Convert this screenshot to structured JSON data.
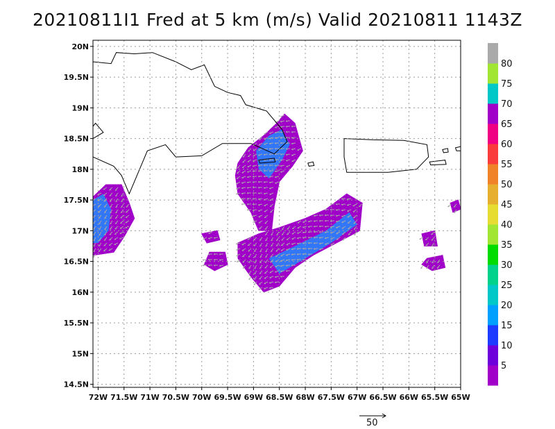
{
  "title": "20210811I1 Fred at 5 km (m/s) Valid 20210811 1143Z",
  "map": {
    "lon_range": [
      -72.1,
      -65
    ],
    "lat_range": [
      14.45,
      20.1
    ],
    "lon_ticks": [
      {
        "value": -72,
        "label": "72W"
      },
      {
        "value": -71.5,
        "label": "71.5W"
      },
      {
        "value": -71,
        "label": "71W"
      },
      {
        "value": -70.5,
        "label": "70.5W"
      },
      {
        "value": -70,
        "label": "70W"
      },
      {
        "value": -69.5,
        "label": "69.5W"
      },
      {
        "value": -69,
        "label": "69W"
      },
      {
        "value": -68.5,
        "label": "68.5W"
      },
      {
        "value": -68,
        "label": "68W"
      },
      {
        "value": -67.5,
        "label": "67.5W"
      },
      {
        "value": -67,
        "label": "67W"
      },
      {
        "value": -66.5,
        "label": "66.5W"
      },
      {
        "value": -66,
        "label": "66W"
      },
      {
        "value": -65.5,
        "label": "65.5W"
      },
      {
        "value": -65,
        "label": "65W"
      }
    ],
    "lat_ticks": [
      {
        "value": 14.5,
        "label": "14.5N"
      },
      {
        "value": 15,
        "label": "15N"
      },
      {
        "value": 15.5,
        "label": "15.5N"
      },
      {
        "value": 16,
        "label": "16N"
      },
      {
        "value": 16.5,
        "label": "16.5N"
      },
      {
        "value": 17,
        "label": "17N"
      },
      {
        "value": 17.5,
        "label": "17.5N"
      },
      {
        "value": 18,
        "label": "18N"
      },
      {
        "value": 18.5,
        "label": "18.5N"
      },
      {
        "value": 19,
        "label": "19N"
      },
      {
        "value": 19.5,
        "label": "19.5N"
      },
      {
        "value": 20,
        "label": "20N"
      }
    ],
    "grid": true,
    "grid_style": "dotted"
  },
  "colorbar": {
    "labels": [
      "5",
      "10",
      "15",
      "20",
      "25",
      "30",
      "35",
      "40",
      "45",
      "50",
      "55",
      "60",
      "65",
      "70",
      "75",
      "80"
    ],
    "colors": [
      "#a000c8",
      "#6e00dc",
      "#1e3cff",
      "#00a0ff",
      "#00c8c8",
      "#00d28c",
      "#00dc00",
      "#a0e632",
      "#e6dc32",
      "#e6af2d",
      "#f08228",
      "#fa3c3c",
      "#f00082",
      "#a000c8",
      "#00c8c8",
      "#a0e632",
      "#aaaaaa"
    ]
  },
  "reference_vector": {
    "label": "50"
  },
  "colors": {
    "coast": "#000000",
    "vector": "#a8a8a8",
    "grid": "#9a9a9a"
  },
  "wind_regions": [
    {
      "name": "lower-left-band",
      "shape": [
        [
          -72.1,
          17.55
        ],
        [
          -71.85,
          17.75
        ],
        [
          -71.55,
          17.75
        ],
        [
          -71.4,
          17.45
        ],
        [
          -71.3,
          17.2
        ],
        [
          -71.5,
          16.9
        ],
        [
          -71.7,
          16.65
        ],
        [
          -72.1,
          16.6
        ]
      ],
      "core": [
        [
          -72.1,
          17.5
        ],
        [
          -71.9,
          17.6
        ],
        [
          -71.75,
          17.35
        ],
        [
          -71.8,
          17.0
        ],
        [
          -72.0,
          16.8
        ],
        [
          -72.1,
          16.8
        ]
      ]
    },
    {
      "name": "northern-cluster",
      "shape": [
        [
          -69.3,
          18.1
        ],
        [
          -69.1,
          18.35
        ],
        [
          -68.8,
          18.55
        ],
        [
          -68.55,
          18.75
        ],
        [
          -68.4,
          18.9
        ],
        [
          -68.2,
          18.75
        ],
        [
          -68.05,
          18.3
        ],
        [
          -68.25,
          18.05
        ],
        [
          -68.5,
          17.8
        ],
        [
          -68.6,
          17.4
        ],
        [
          -68.65,
          17.0
        ],
        [
          -68.9,
          17.0
        ],
        [
          -69.05,
          17.3
        ],
        [
          -69.3,
          17.6
        ],
        [
          -69.35,
          17.9
        ]
      ],
      "core": [
        [
          -68.95,
          18.3
        ],
        [
          -68.7,
          18.55
        ],
        [
          -68.45,
          18.65
        ],
        [
          -68.3,
          18.4
        ],
        [
          -68.45,
          18.15
        ],
        [
          -68.7,
          17.85
        ],
        [
          -68.9,
          18.0
        ]
      ]
    },
    {
      "name": "central-band",
      "shape": [
        [
          -69.3,
          16.8
        ],
        [
          -68.9,
          16.95
        ],
        [
          -68.5,
          17.05
        ],
        [
          -68.0,
          17.2
        ],
        [
          -67.6,
          17.35
        ],
        [
          -67.2,
          17.6
        ],
        [
          -66.9,
          17.45
        ],
        [
          -66.95,
          17.0
        ],
        [
          -67.4,
          16.8
        ],
        [
          -67.85,
          16.6
        ],
        [
          -68.2,
          16.4
        ],
        [
          -68.5,
          16.1
        ],
        [
          -68.8,
          16.0
        ],
        [
          -69.05,
          16.25
        ],
        [
          -69.3,
          16.55
        ]
      ],
      "core": [
        [
          -68.7,
          16.55
        ],
        [
          -68.2,
          16.75
        ],
        [
          -67.6,
          17.0
        ],
        [
          -67.15,
          17.3
        ],
        [
          -67.0,
          17.1
        ],
        [
          -67.5,
          16.8
        ],
        [
          -68.0,
          16.55
        ],
        [
          -68.5,
          16.3
        ]
      ]
    },
    {
      "name": "left-small-patch",
      "shape": [
        [
          -69.85,
          16.65
        ],
        [
          -69.55,
          16.65
        ],
        [
          -69.5,
          16.45
        ],
        [
          -69.75,
          16.35
        ],
        [
          -69.95,
          16.45
        ]
      ]
    },
    {
      "name": "left-mini-patch",
      "shape": [
        [
          -70.0,
          16.95
        ],
        [
          -69.7,
          17.0
        ],
        [
          -69.65,
          16.85
        ],
        [
          -69.9,
          16.8
        ]
      ]
    },
    {
      "name": "right-small-patch",
      "shape": [
        [
          -65.65,
          16.55
        ],
        [
          -65.35,
          16.6
        ],
        [
          -65.3,
          16.4
        ],
        [
          -65.55,
          16.35
        ],
        [
          -65.75,
          16.45
        ]
      ]
    },
    {
      "name": "right-mini-patch",
      "shape": [
        [
          -65.75,
          16.95
        ],
        [
          -65.5,
          17.0
        ],
        [
          -65.45,
          16.75
        ],
        [
          -65.7,
          16.75
        ]
      ]
    },
    {
      "name": "far-right-fragment",
      "shape": [
        [
          -65.2,
          17.45
        ],
        [
          -65.05,
          17.5
        ],
        [
          -65.0,
          17.35
        ],
        [
          -65.15,
          17.3
        ]
      ]
    }
  ],
  "coastlines": [
    {
      "name": "hispaniola",
      "points": [
        [
          -72.1,
          19.75
        ],
        [
          -71.75,
          19.72
        ],
        [
          -71.65,
          19.9
        ],
        [
          -71.3,
          19.88
        ],
        [
          -70.95,
          19.9
        ],
        [
          -70.5,
          19.75
        ],
        [
          -70.2,
          19.62
        ],
        [
          -69.95,
          19.7
        ],
        [
          -69.75,
          19.35
        ],
        [
          -69.5,
          19.25
        ],
        [
          -69.25,
          19.2
        ],
        [
          -69.15,
          19.05
        ],
        [
          -68.75,
          18.95
        ],
        [
          -68.45,
          18.65
        ],
        [
          -68.35,
          18.45
        ],
        [
          -68.6,
          18.25
        ],
        [
          -69.05,
          18.42
        ],
        [
          -69.6,
          18.42
        ],
        [
          -70.0,
          18.22
        ],
        [
          -70.5,
          18.2
        ],
        [
          -70.7,
          18.4
        ],
        [
          -71.05,
          18.3
        ],
        [
          -71.25,
          17.9
        ],
        [
          -71.4,
          17.6
        ],
        [
          -71.55,
          17.9
        ],
        [
          -71.7,
          18.05
        ],
        [
          -72.1,
          18.2
        ]
      ]
    },
    {
      "name": "hispaniola-peninsula",
      "points": [
        [
          -72.1,
          18.5
        ],
        [
          -71.9,
          18.6
        ],
        [
          -72.05,
          18.75
        ],
        [
          -72.1,
          18.7
        ]
      ]
    },
    {
      "name": "saona-island",
      "points": [
        [
          -68.9,
          18.15
        ],
        [
          -68.6,
          18.18
        ],
        [
          -68.58,
          18.12
        ],
        [
          -68.88,
          18.1
        ]
      ]
    },
    {
      "name": "mona-island",
      "points": [
        [
          -67.95,
          18.1
        ],
        [
          -67.85,
          18.12
        ],
        [
          -67.83,
          18.06
        ],
        [
          -67.93,
          18.05
        ]
      ]
    },
    {
      "name": "puerto-rico",
      "points": [
        [
          -67.25,
          18.5
        ],
        [
          -66.7,
          18.48
        ],
        [
          -66.1,
          18.47
        ],
        [
          -65.65,
          18.4
        ],
        [
          -65.62,
          18.2
        ],
        [
          -65.85,
          18.0
        ],
        [
          -66.4,
          17.95
        ],
        [
          -66.9,
          17.95
        ],
        [
          -67.2,
          17.95
        ],
        [
          -67.25,
          18.2
        ]
      ]
    },
    {
      "name": "vieques",
      "points": [
        [
          -65.6,
          18.12
        ],
        [
          -65.3,
          18.15
        ],
        [
          -65.28,
          18.08
        ],
        [
          -65.58,
          18.07
        ]
      ]
    },
    {
      "name": "culebra",
      "points": [
        [
          -65.35,
          18.32
        ],
        [
          -65.25,
          18.34
        ],
        [
          -65.24,
          18.28
        ],
        [
          -65.33,
          18.27
        ]
      ]
    },
    {
      "name": "virgin-islands",
      "points": [
        [
          -65.1,
          18.35
        ],
        [
          -65.0,
          18.37
        ],
        [
          -65.0,
          18.3
        ],
        [
          -65.08,
          18.3
        ]
      ]
    }
  ]
}
